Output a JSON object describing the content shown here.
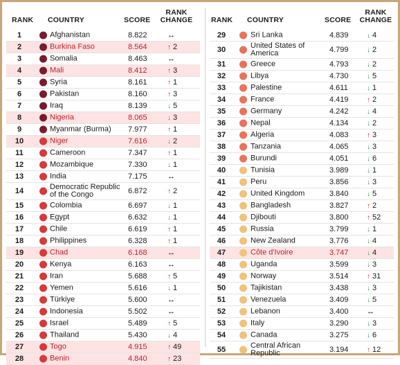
{
  "headers": {
    "rank": "RANK",
    "country": "COUNTRY",
    "score": "SCORE",
    "change_line1": "RANK",
    "change_line2": "CHANGE"
  },
  "colors": {
    "very_high": "#7a1c2e",
    "high": "#d63a3a",
    "elevated": "#e8735a",
    "moderate": "#f0c27b",
    "up": "#d0241b",
    "down": "#2f9a4a",
    "highlight": "#fde3e3"
  },
  "left_rows": [
    {
      "rank": "1",
      "country": "Afghanistan",
      "score": "8.822",
      "dir": "same",
      "change": "",
      "level": "very_high",
      "hl": false
    },
    {
      "rank": "2",
      "country": "Burkina Faso",
      "score": "8.564",
      "dir": "up",
      "change": "2",
      "level": "very_high",
      "hl": true
    },
    {
      "rank": "3",
      "country": "Somalia",
      "score": "8.463",
      "dir": "same",
      "change": "",
      "level": "very_high",
      "hl": false
    },
    {
      "rank": "4",
      "country": "Mali",
      "score": "8.412",
      "dir": "up",
      "change": "3",
      "level": "very_high",
      "hl": true
    },
    {
      "rank": "5",
      "country": "Syria",
      "score": "8.161",
      "dir": "up",
      "change": "1",
      "level": "very_high",
      "hl": false
    },
    {
      "rank": "6",
      "country": "Pakistan",
      "score": "8.160",
      "dir": "up",
      "change": "3",
      "level": "very_high",
      "hl": false
    },
    {
      "rank": "7",
      "country": "Iraq",
      "score": "8.139",
      "dir": "down",
      "change": "5",
      "level": "very_high",
      "hl": false
    },
    {
      "rank": "8",
      "country": "Nigeria",
      "score": "8.065",
      "dir": "down",
      "change": "3",
      "level": "very_high",
      "hl": true
    },
    {
      "rank": "9",
      "country": "Myanmar (Burma)",
      "score": "7.977",
      "dir": "up",
      "change": "1",
      "level": "very_high",
      "hl": false
    },
    {
      "rank": "10",
      "country": "Niger",
      "score": "7.616",
      "dir": "down",
      "change": "2",
      "level": "high",
      "hl": true
    },
    {
      "rank": "11",
      "country": "Cameroon",
      "score": "7.347",
      "dir": "up",
      "change": "1",
      "level": "high",
      "hl": false
    },
    {
      "rank": "12",
      "country": "Mozambique",
      "score": "7.330",
      "dir": "down",
      "change": "1",
      "level": "high",
      "hl": false
    },
    {
      "rank": "13",
      "country": "India",
      "score": "7.175",
      "dir": "same",
      "change": "",
      "level": "high",
      "hl": false
    },
    {
      "rank": "14",
      "country": "Democratic Republic of the Congo",
      "score": "6.872",
      "dir": "up",
      "change": "2",
      "level": "high",
      "hl": false,
      "tall": true
    },
    {
      "rank": "15",
      "country": "Colombia",
      "score": "6.697",
      "dir": "down",
      "change": "1",
      "level": "high",
      "hl": false
    },
    {
      "rank": "16",
      "country": "Egypt",
      "score": "6.632",
      "dir": "down",
      "change": "1",
      "level": "high",
      "hl": false
    },
    {
      "rank": "17",
      "country": "Chile",
      "score": "6.619",
      "dir": "up",
      "change": "1",
      "level": "high",
      "hl": false
    },
    {
      "rank": "18",
      "country": "Philippines",
      "score": "6.328",
      "dir": "up",
      "change": "1",
      "level": "high",
      "hl": false
    },
    {
      "rank": "19",
      "country": "Chad",
      "score": "6.168",
      "dir": "same",
      "change": "",
      "level": "high",
      "hl": true
    },
    {
      "rank": "20",
      "country": "Kenya",
      "score": "6.163",
      "dir": "same",
      "change": "",
      "level": "high",
      "hl": false
    },
    {
      "rank": "21",
      "country": "Iran",
      "score": "5.688",
      "dir": "up",
      "change": "5",
      "level": "high",
      "hl": false
    },
    {
      "rank": "22",
      "country": "Yemen",
      "score": "5.616",
      "dir": "down",
      "change": "1",
      "level": "high",
      "hl": false
    },
    {
      "rank": "23",
      "country": "Türkiye",
      "score": "5.600",
      "dir": "same",
      "change": "",
      "level": "high",
      "hl": false
    },
    {
      "rank": "24",
      "country": "Indonesia",
      "score": "5.502",
      "dir": "same",
      "change": "",
      "level": "high",
      "hl": false
    },
    {
      "rank": "25",
      "country": "Israel",
      "score": "5.489",
      "dir": "up",
      "change": "5",
      "level": "high",
      "hl": false
    },
    {
      "rank": "26",
      "country": "Thailand",
      "score": "5.430",
      "dir": "down",
      "change": "4",
      "level": "high",
      "hl": false
    },
    {
      "rank": "27",
      "country": "Togo",
      "score": "4.915",
      "dir": "up",
      "change": "49",
      "level": "high",
      "hl": true
    },
    {
      "rank": "28",
      "country": "Benin",
      "score": "4.840",
      "dir": "up",
      "change": "23",
      "level": "high",
      "hl": true
    }
  ],
  "right_rows": [
    {
      "rank": "29",
      "country": "Sri Lanka",
      "score": "4.839",
      "dir": "down",
      "change": "4",
      "level": "elevated",
      "hl": false
    },
    {
      "rank": "30",
      "country": "United States of America",
      "score": "4.799",
      "dir": "down",
      "change": "2",
      "level": "elevated",
      "hl": false,
      "tall": true
    },
    {
      "rank": "31",
      "country": "Greece",
      "score": "4.793",
      "dir": "down",
      "change": "2",
      "level": "elevated",
      "hl": false
    },
    {
      "rank": "32",
      "country": "Libya",
      "score": "4.730",
      "dir": "down",
      "change": "5",
      "level": "elevated",
      "hl": false
    },
    {
      "rank": "33",
      "country": "Palestine",
      "score": "4.611",
      "dir": "down",
      "change": "1",
      "level": "elevated",
      "hl": false
    },
    {
      "rank": "34",
      "country": "France",
      "score": "4.419",
      "dir": "up",
      "change": "2",
      "level": "elevated",
      "hl": false
    },
    {
      "rank": "35",
      "country": "Germany",
      "score": "4.242",
      "dir": "down",
      "change": "4",
      "level": "elevated",
      "hl": false
    },
    {
      "rank": "36",
      "country": "Nepal",
      "score": "4.134",
      "dir": "down",
      "change": "2",
      "level": "elevated",
      "hl": false
    },
    {
      "rank": "37",
      "country": "Algeria",
      "score": "4.083",
      "dir": "up",
      "change": "3",
      "level": "elevated",
      "hl": false
    },
    {
      "rank": "38",
      "country": "Tanzania",
      "score": "4.065",
      "dir": "down",
      "change": "3",
      "level": "elevated",
      "hl": false
    },
    {
      "rank": "39",
      "country": "Burundi",
      "score": "4.051",
      "dir": "down",
      "change": "6",
      "level": "elevated",
      "hl": false
    },
    {
      "rank": "40",
      "country": "Tunisia",
      "score": "3.989",
      "dir": "down",
      "change": "1",
      "level": "moderate",
      "hl": false
    },
    {
      "rank": "41",
      "country": "Peru",
      "score": "3.856",
      "dir": "down",
      "change": "3",
      "level": "moderate",
      "hl": false
    },
    {
      "rank": "42",
      "country": "United Kingdom",
      "score": "3.840",
      "dir": "down",
      "change": "5",
      "level": "moderate",
      "hl": false
    },
    {
      "rank": "43",
      "country": "Bangladesh",
      "score": "3.827",
      "dir": "up",
      "change": "2",
      "level": "moderate",
      "hl": false
    },
    {
      "rank": "44",
      "country": "Djibouti",
      "score": "3.800",
      "dir": "up",
      "change": "52",
      "level": "moderate",
      "hl": false
    },
    {
      "rank": "45",
      "country": "Russia",
      "score": "3.799",
      "dir": "down",
      "change": "1",
      "level": "moderate",
      "hl": false
    },
    {
      "rank": "46",
      "country": "New Zealand",
      "score": "3.776",
      "dir": "down",
      "change": "4",
      "level": "moderate",
      "hl": false
    },
    {
      "rank": "47",
      "country": "Côte d'Ivoire",
      "score": "3.747",
      "dir": "down",
      "change": "4",
      "level": "moderate",
      "hl": true
    },
    {
      "rank": "48",
      "country": "Uganda",
      "score": "3.599",
      "dir": "down",
      "change": "3",
      "level": "moderate",
      "hl": false
    },
    {
      "rank": "49",
      "country": "Norway",
      "score": "3.514",
      "dir": "up",
      "change": "31",
      "level": "moderate",
      "hl": false
    },
    {
      "rank": "50",
      "country": "Tajikistan",
      "score": "3.438",
      "dir": "down",
      "change": "3",
      "level": "moderate",
      "hl": false
    },
    {
      "rank": "51",
      "country": "Venezuela",
      "score": "3.409",
      "dir": "down",
      "change": "5",
      "level": "moderate",
      "hl": false
    },
    {
      "rank": "52",
      "country": "Lebanon",
      "score": "3.400",
      "dir": "same",
      "change": "",
      "level": "moderate",
      "hl": false
    },
    {
      "rank": "53",
      "country": "Italy",
      "score": "3.290",
      "dir": "down",
      "change": "3",
      "level": "moderate",
      "hl": false
    },
    {
      "rank": "54",
      "country": "Canada",
      "score": "3.275",
      "dir": "down",
      "change": "6",
      "level": "moderate",
      "hl": false
    },
    {
      "rank": "55",
      "country": "Central African Republic",
      "score": "3.194",
      "dir": "up",
      "change": "12",
      "level": "moderate",
      "hl": false,
      "tall": true
    }
  ]
}
